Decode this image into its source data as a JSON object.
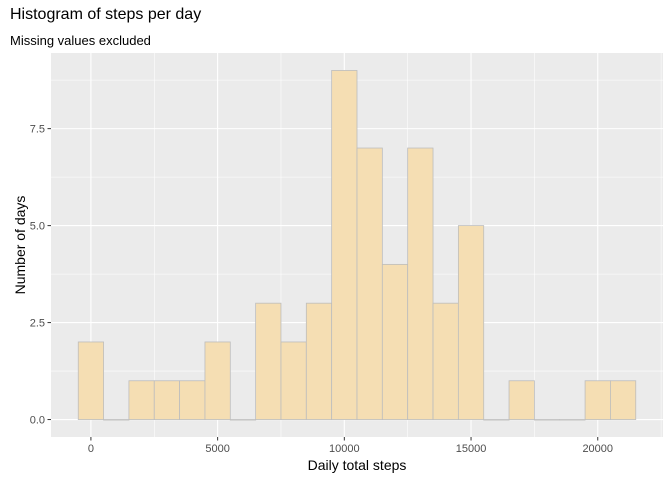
{
  "chart_data": {
    "type": "bar",
    "title": "Histogram of steps per day",
    "subtitle": "Missing values excluded",
    "xlabel": "Daily total steps",
    "ylabel": "Number of days",
    "x_ticks": [
      0,
      5000,
      10000,
      15000,
      20000
    ],
    "x_tick_labels": [
      "0",
      "5000",
      "10000",
      "15000",
      "20000"
    ],
    "y_ticks": [
      0,
      2.5,
      5.0,
      7.5
    ],
    "y_tick_labels": [
      "0.0",
      "2.5",
      "5.0",
      "7.5"
    ],
    "bin_width": 1000,
    "bins": [
      {
        "center": 0,
        "count": 2
      },
      {
        "center": 1000,
        "count": 0
      },
      {
        "center": 2000,
        "count": 1
      },
      {
        "center": 3000,
        "count": 1
      },
      {
        "center": 4000,
        "count": 1
      },
      {
        "center": 5000,
        "count": 2
      },
      {
        "center": 6000,
        "count": 0
      },
      {
        "center": 7000,
        "count": 3
      },
      {
        "center": 8000,
        "count": 2
      },
      {
        "center": 9000,
        "count": 3
      },
      {
        "center": 10000,
        "count": 9
      },
      {
        "center": 11000,
        "count": 7
      },
      {
        "center": 12000,
        "count": 4
      },
      {
        "center": 13000,
        "count": 7
      },
      {
        "center": 14000,
        "count": 3
      },
      {
        "center": 15000,
        "count": 5
      },
      {
        "center": 16000,
        "count": 0
      },
      {
        "center": 17000,
        "count": 1
      },
      {
        "center": 18000,
        "count": 0
      },
      {
        "center": 19000,
        "count": 0
      },
      {
        "center": 20000,
        "count": 1
      },
      {
        "center": 21000,
        "count": 1
      }
    ],
    "xlim": [
      -1575,
      22575
    ],
    "ylim": [
      -0.45,
      9.45
    ],
    "grid": true,
    "colors": {
      "panel": "#ebebeb",
      "grid_major": "#ffffff",
      "bar_fill": "#f5deb3",
      "bar_stroke": "#bdbdbd"
    }
  }
}
